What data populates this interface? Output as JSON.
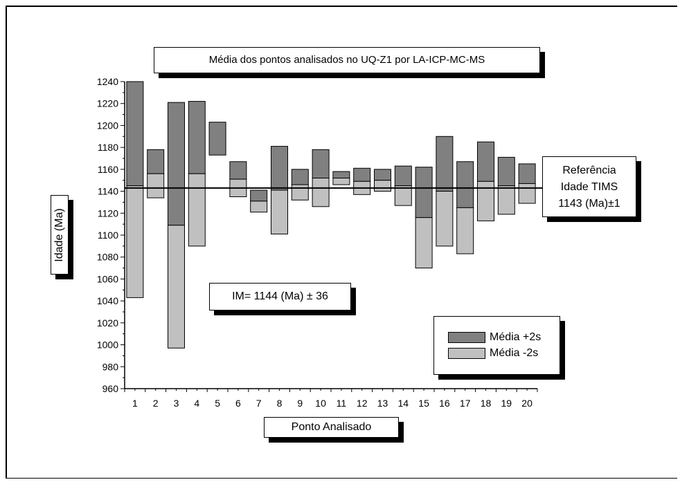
{
  "chart_data": {
    "type": "bar",
    "title": "Média dos pontos analisados no UQ-Z1 por LA-ICP-MC-MS",
    "xlabel": "Ponto Analisado",
    "ylabel": "Idade (Ma)",
    "ylim": [
      960,
      1240
    ],
    "yticks": [
      "960",
      "980",
      "1000",
      "1020",
      "1040",
      "1060",
      "1080",
      "1100",
      "1120",
      "1140",
      "1160",
      "1180",
      "1200",
      "1220",
      "1240"
    ],
    "categories": [
      "1",
      "2",
      "3",
      "4",
      "5",
      "6",
      "7",
      "8",
      "9",
      "10",
      "11",
      "12",
      "13",
      "14",
      "15",
      "16",
      "17",
      "18",
      "19",
      "20"
    ],
    "series": [
      {
        "name": "Média +2s",
        "color": "#808080",
        "values": [
          1240,
          1178,
          1221,
          1222,
          1203,
          1167,
          1141,
          1181,
          1160,
          1178,
          1158,
          1161,
          1160,
          1163,
          1162,
          1190,
          1167,
          1185,
          1171,
          1165
        ]
      },
      {
        "name": "Média  -2s",
        "color": "#c0c0c0",
        "values": [
          1043,
          1134,
          997,
          1090,
          1173,
          1135,
          1121,
          1101,
          1132,
          1126,
          1146,
          1137,
          1140,
          1127,
          1070,
          1090,
          1083,
          1113,
          1119,
          1129
        ]
      }
    ],
    "means": [
      1145,
      1156,
      1109,
      1156,
      1173,
      1151,
      1131,
      1141,
      1146,
      1152,
      1152,
      1149,
      1150,
      1145,
      1116,
      1140,
      1125,
      1149,
      1145,
      1147
    ],
    "reference_line": 1143,
    "annotations": {
      "im": "IM= 1144 (Ma) ± 36",
      "reference": [
        "Referência",
        "Idade TIMS",
        "1143 (Ma)±1"
      ]
    },
    "legend_position": "bottom-right",
    "grid": false
  }
}
